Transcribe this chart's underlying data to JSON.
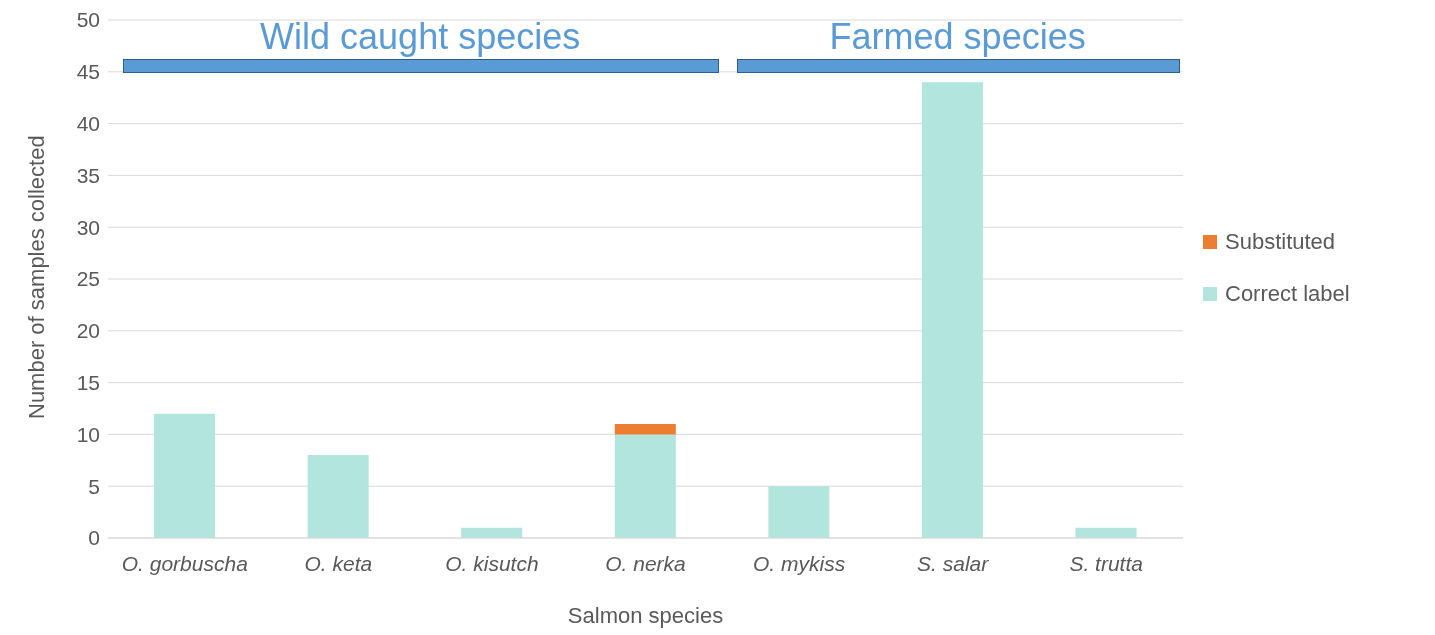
{
  "chart_data": {
    "type": "bar",
    "stacked": true,
    "xlabel": "Salmon species",
    "ylabel": "Number of samples collected",
    "categories": [
      "O. gorbuscha",
      "O. keta",
      "O. kisutch",
      "O. nerka",
      "O. mykiss",
      "S. salar",
      "S. trutta"
    ],
    "series": [
      {
        "name": "Correct label",
        "color": "#b1e5dd",
        "values": [
          12,
          8,
          1,
          10,
          5,
          44,
          1
        ]
      },
      {
        "name": "Substituted",
        "color": "#ed7d31",
        "values": [
          0,
          0,
          0,
          1,
          0,
          0,
          0
        ]
      }
    ],
    "ylim": [
      0,
      50
    ],
    "yticks": [
      0,
      5,
      10,
      15,
      20,
      25,
      30,
      35,
      40,
      45,
      50
    ],
    "grid": "y",
    "legend": "right",
    "annotations": [
      "Wild caught species",
      "Farmed species"
    ]
  }
}
